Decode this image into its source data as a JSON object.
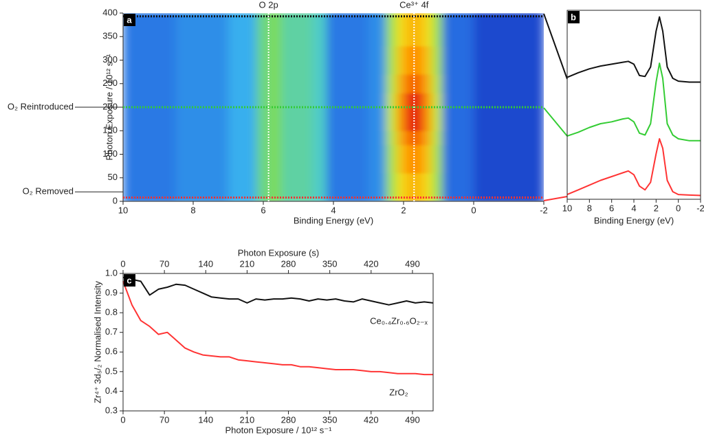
{
  "chart_data": [
    {
      "type": "heatmap",
      "panel": "a",
      "xlabel": "Binding Energy (eV)",
      "ylabel": "Photon Exposure / 10¹² s⁻¹",
      "xlim": [
        10,
        -2
      ],
      "xticks": [
        10,
        8,
        6,
        4,
        2,
        0,
        -2
      ],
      "ylim": [
        0,
        400
      ],
      "yticks": [
        0,
        50,
        100,
        150,
        200,
        250,
        300,
        350,
        400
      ],
      "x_edges": [
        10,
        8.5,
        7,
        6.2,
        5.85,
        5.5,
        4.6,
        4.2,
        3,
        2.5,
        2.2,
        1.95,
        1.45,
        1.2,
        0.9,
        0,
        -2
      ],
      "y_edges": [
        0,
        60,
        120,
        150,
        230,
        270,
        330,
        400
      ],
      "zlim": [
        0,
        1
      ],
      "colormap": [
        "#1f2fa8",
        "#1f55dd",
        "#3fc6f2",
        "#7ddc5a",
        "#f2f21e",
        "#ff8a00",
        "#e01010"
      ],
      "z": [
        [
          0.22,
          0.25,
          0.3,
          0.45,
          0.5,
          0.42,
          0.38,
          0.22,
          0.25,
          0.55,
          0.7,
          0.76,
          0.7,
          0.55,
          0.2,
          0.12
        ],
        [
          0.22,
          0.25,
          0.3,
          0.45,
          0.5,
          0.42,
          0.38,
          0.22,
          0.25,
          0.56,
          0.74,
          0.82,
          0.74,
          0.56,
          0.2,
          0.12
        ],
        [
          0.22,
          0.25,
          0.3,
          0.45,
          0.5,
          0.42,
          0.38,
          0.22,
          0.25,
          0.58,
          0.78,
          0.88,
          0.78,
          0.58,
          0.2,
          0.12
        ],
        [
          0.22,
          0.25,
          0.3,
          0.45,
          0.5,
          0.42,
          0.38,
          0.22,
          0.25,
          0.6,
          0.82,
          0.97,
          0.82,
          0.6,
          0.2,
          0.12
        ],
        [
          0.22,
          0.25,
          0.3,
          0.45,
          0.5,
          0.42,
          0.38,
          0.22,
          0.25,
          0.58,
          0.78,
          0.88,
          0.78,
          0.58,
          0.2,
          0.12
        ],
        [
          0.22,
          0.25,
          0.3,
          0.45,
          0.5,
          0.42,
          0.38,
          0.22,
          0.25,
          0.56,
          0.74,
          0.82,
          0.74,
          0.56,
          0.2,
          0.12
        ],
        [
          0.22,
          0.25,
          0.3,
          0.45,
          0.5,
          0.42,
          0.38,
          0.22,
          0.25,
          0.55,
          0.7,
          0.76,
          0.7,
          0.55,
          0.2,
          0.12
        ]
      ],
      "hlines": [
        {
          "y": 393,
          "color": "#111111"
        },
        {
          "y": 200,
          "color": "#33cc33"
        },
        {
          "y": 8,
          "color": "#ff3333"
        }
      ],
      "vlines": [
        {
          "x": 5.85,
          "label": "O 2p"
        },
        {
          "x": 1.7,
          "label": "Ce³⁺ 4f"
        }
      ],
      "side_labels": [
        {
          "y": 200,
          "label": "O₂ Reintroduced"
        },
        {
          "y": 20,
          "label": "O₂ Removed"
        }
      ]
    },
    {
      "type": "line",
      "panel": "b",
      "xlabel": "Binding Energy (eV)",
      "xlim": [
        10,
        -2
      ],
      "xticks": [
        10,
        8,
        6,
        4,
        2,
        0,
        -2
      ],
      "ylim": [
        0,
        10
      ],
      "x": [
        10,
        9,
        8,
        7,
        6,
        5,
        4.5,
        4,
        3.5,
        3,
        2.5,
        2,
        1.7,
        1.4,
        1,
        0.5,
        0,
        -1,
        -2
      ],
      "series": [
        {
          "color": "#111111",
          "values": [
            6.45,
            6.7,
            6.9,
            7.05,
            7.15,
            7.25,
            7.3,
            7.15,
            6.55,
            6.5,
            7.0,
            8.9,
            9.65,
            8.9,
            7.0,
            6.4,
            6.25,
            6.2,
            6.2
          ]
        },
        {
          "color": "#33cc33",
          "values": [
            3.35,
            3.55,
            3.8,
            4.0,
            4.1,
            4.25,
            4.3,
            4.1,
            3.5,
            3.4,
            4.0,
            6.2,
            7.2,
            6.4,
            4.0,
            3.4,
            3.2,
            3.1,
            3.1
          ]
        },
        {
          "color": "#ff3333",
          "values": [
            0.25,
            0.5,
            0.75,
            1.0,
            1.2,
            1.4,
            1.5,
            1.3,
            0.7,
            0.5,
            0.9,
            2.4,
            3.2,
            2.7,
            1.0,
            0.4,
            0.25,
            0.22,
            0.2
          ]
        }
      ]
    },
    {
      "type": "line",
      "panel": "c",
      "xlabel": "Photon Exposure / 10¹² s⁻¹",
      "x2label": "Photon Exposure (s)",
      "ylabel": "Zr⁴⁺ 3d₅/₂ Normalised Intensity",
      "xlim": [
        0,
        525
      ],
      "xticks": [
        0,
        70,
        140,
        210,
        280,
        350,
        420,
        490
      ],
      "x2lim": [
        0,
        525
      ],
      "x2ticks": [
        0,
        70,
        140,
        210,
        280,
        350,
        420,
        490
      ],
      "ylim": [
        0.3,
        1.0
      ],
      "yticks": [
        0.3,
        0.4,
        0.5,
        0.6,
        0.7,
        0.8,
        0.9,
        {
          "value": 1.0,
          "label": "1.0"
        }
      ],
      "x": [
        0,
        15,
        30,
        45,
        60,
        75,
        90,
        105,
        120,
        135,
        150,
        165,
        180,
        195,
        210,
        225,
        240,
        255,
        270,
        285,
        300,
        315,
        330,
        345,
        360,
        375,
        390,
        405,
        420,
        435,
        450,
        465,
        480,
        495,
        510,
        525
      ],
      "series": [
        {
          "name": "Ce₀.₄Zr₀.₆O₂₋ₓ",
          "color": "#111111",
          "values": [
            0.98,
            0.97,
            0.96,
            0.89,
            0.92,
            0.93,
            0.945,
            0.94,
            0.92,
            0.9,
            0.88,
            0.875,
            0.87,
            0.87,
            0.85,
            0.87,
            0.865,
            0.87,
            0.87,
            0.875,
            0.87,
            0.86,
            0.87,
            0.865,
            0.87,
            0.86,
            0.855,
            0.87,
            0.86,
            0.85,
            0.84,
            0.85,
            0.86,
            0.85,
            0.855,
            0.85
          ]
        },
        {
          "name": "ZrO₂",
          "color": "#ff3333",
          "values": [
            0.96,
            0.84,
            0.76,
            0.73,
            0.69,
            0.7,
            0.66,
            0.62,
            0.6,
            0.585,
            0.58,
            0.575,
            0.575,
            0.56,
            0.555,
            0.55,
            0.545,
            0.54,
            0.535,
            0.535,
            0.525,
            0.525,
            0.52,
            0.515,
            0.51,
            0.51,
            0.51,
            0.505,
            0.5,
            0.5,
            0.495,
            0.49,
            0.49,
            0.49,
            0.485,
            0.485
          ]
        }
      ]
    }
  ]
}
